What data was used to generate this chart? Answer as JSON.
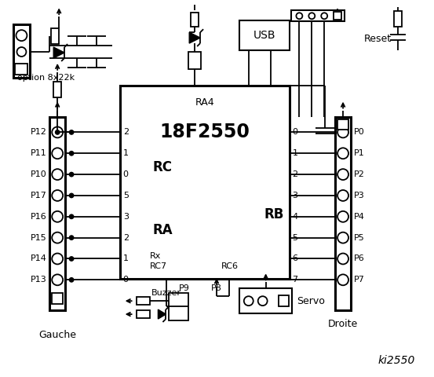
{
  "bg_color": "#ffffff",
  "chip_label": "18F2550",
  "chip_sublabel": "RA4",
  "rc_label": "RC",
  "ra_label": "RA",
  "rb_label": "RB",
  "rc_pins_left": [
    "2",
    "1",
    "0",
    "5",
    "3",
    "2",
    "1",
    "0"
  ],
  "rb_pins_right": [
    "0",
    "1",
    "2",
    "3",
    "4",
    "5",
    "6",
    "7"
  ],
  "left_pins": [
    "P12",
    "P11",
    "P10",
    "P17",
    "P16",
    "P15",
    "P14",
    "P13"
  ],
  "right_pins": [
    "P0",
    "P1",
    "P2",
    "P3",
    "P4",
    "P5",
    "P6",
    "P7"
  ],
  "title": "ki2550",
  "option_label": "option 8x22k",
  "gauche_label": "Gauche",
  "droite_label": "Droite",
  "buzzer_label": "Buzzer",
  "servo_label": "Servo",
  "usb_label": "USB",
  "reset_label": "Reset",
  "p8_label": "P8",
  "p9_label": "P9"
}
